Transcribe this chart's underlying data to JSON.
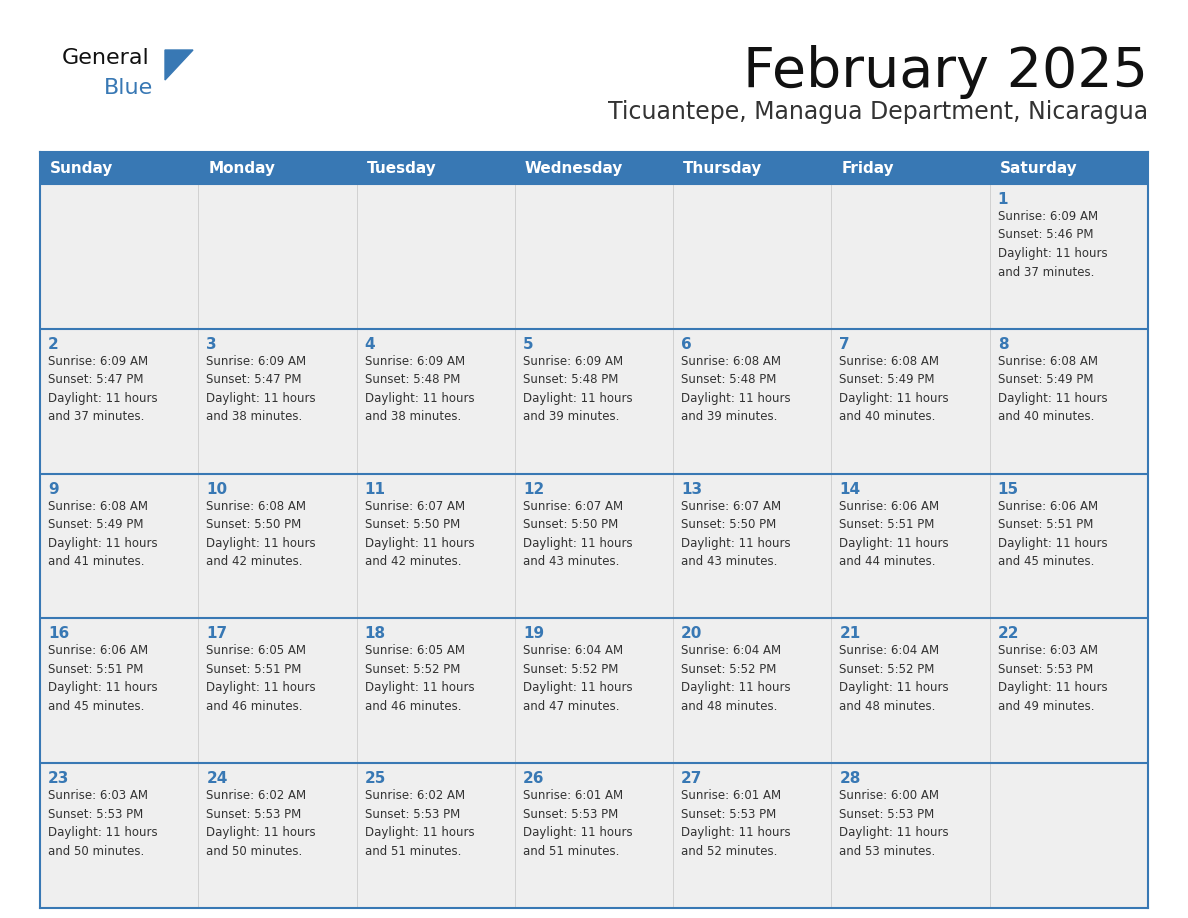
{
  "title": "February 2025",
  "subtitle": "Ticuantepe, Managua Department, Nicaragua",
  "header_color": "#3878b4",
  "header_text_color": "#ffffff",
  "cell_bg_color": "#efefef",
  "text_color": "#333333",
  "day_number_color": "#3878b4",
  "border_color": "#3878b4",
  "weekdays": [
    "Sunday",
    "Monday",
    "Tuesday",
    "Wednesday",
    "Thursday",
    "Friday",
    "Saturday"
  ],
  "weeks": [
    [
      {
        "day": null,
        "info": null
      },
      {
        "day": null,
        "info": null
      },
      {
        "day": null,
        "info": null
      },
      {
        "day": null,
        "info": null
      },
      {
        "day": null,
        "info": null
      },
      {
        "day": null,
        "info": null
      },
      {
        "day": 1,
        "info": "Sunrise: 6:09 AM\nSunset: 5:46 PM\nDaylight: 11 hours\nand 37 minutes."
      }
    ],
    [
      {
        "day": 2,
        "info": "Sunrise: 6:09 AM\nSunset: 5:47 PM\nDaylight: 11 hours\nand 37 minutes."
      },
      {
        "day": 3,
        "info": "Sunrise: 6:09 AM\nSunset: 5:47 PM\nDaylight: 11 hours\nand 38 minutes."
      },
      {
        "day": 4,
        "info": "Sunrise: 6:09 AM\nSunset: 5:48 PM\nDaylight: 11 hours\nand 38 minutes."
      },
      {
        "day": 5,
        "info": "Sunrise: 6:09 AM\nSunset: 5:48 PM\nDaylight: 11 hours\nand 39 minutes."
      },
      {
        "day": 6,
        "info": "Sunrise: 6:08 AM\nSunset: 5:48 PM\nDaylight: 11 hours\nand 39 minutes."
      },
      {
        "day": 7,
        "info": "Sunrise: 6:08 AM\nSunset: 5:49 PM\nDaylight: 11 hours\nand 40 minutes."
      },
      {
        "day": 8,
        "info": "Sunrise: 6:08 AM\nSunset: 5:49 PM\nDaylight: 11 hours\nand 40 minutes."
      }
    ],
    [
      {
        "day": 9,
        "info": "Sunrise: 6:08 AM\nSunset: 5:49 PM\nDaylight: 11 hours\nand 41 minutes."
      },
      {
        "day": 10,
        "info": "Sunrise: 6:08 AM\nSunset: 5:50 PM\nDaylight: 11 hours\nand 42 minutes."
      },
      {
        "day": 11,
        "info": "Sunrise: 6:07 AM\nSunset: 5:50 PM\nDaylight: 11 hours\nand 42 minutes."
      },
      {
        "day": 12,
        "info": "Sunrise: 6:07 AM\nSunset: 5:50 PM\nDaylight: 11 hours\nand 43 minutes."
      },
      {
        "day": 13,
        "info": "Sunrise: 6:07 AM\nSunset: 5:50 PM\nDaylight: 11 hours\nand 43 minutes."
      },
      {
        "day": 14,
        "info": "Sunrise: 6:06 AM\nSunset: 5:51 PM\nDaylight: 11 hours\nand 44 minutes."
      },
      {
        "day": 15,
        "info": "Sunrise: 6:06 AM\nSunset: 5:51 PM\nDaylight: 11 hours\nand 45 minutes."
      }
    ],
    [
      {
        "day": 16,
        "info": "Sunrise: 6:06 AM\nSunset: 5:51 PM\nDaylight: 11 hours\nand 45 minutes."
      },
      {
        "day": 17,
        "info": "Sunrise: 6:05 AM\nSunset: 5:51 PM\nDaylight: 11 hours\nand 46 minutes."
      },
      {
        "day": 18,
        "info": "Sunrise: 6:05 AM\nSunset: 5:52 PM\nDaylight: 11 hours\nand 46 minutes."
      },
      {
        "day": 19,
        "info": "Sunrise: 6:04 AM\nSunset: 5:52 PM\nDaylight: 11 hours\nand 47 minutes."
      },
      {
        "day": 20,
        "info": "Sunrise: 6:04 AM\nSunset: 5:52 PM\nDaylight: 11 hours\nand 48 minutes."
      },
      {
        "day": 21,
        "info": "Sunrise: 6:04 AM\nSunset: 5:52 PM\nDaylight: 11 hours\nand 48 minutes."
      },
      {
        "day": 22,
        "info": "Sunrise: 6:03 AM\nSunset: 5:53 PM\nDaylight: 11 hours\nand 49 minutes."
      }
    ],
    [
      {
        "day": 23,
        "info": "Sunrise: 6:03 AM\nSunset: 5:53 PM\nDaylight: 11 hours\nand 50 minutes."
      },
      {
        "day": 24,
        "info": "Sunrise: 6:02 AM\nSunset: 5:53 PM\nDaylight: 11 hours\nand 50 minutes."
      },
      {
        "day": 25,
        "info": "Sunrise: 6:02 AM\nSunset: 5:53 PM\nDaylight: 11 hours\nand 51 minutes."
      },
      {
        "day": 26,
        "info": "Sunrise: 6:01 AM\nSunset: 5:53 PM\nDaylight: 11 hours\nand 51 minutes."
      },
      {
        "day": 27,
        "info": "Sunrise: 6:01 AM\nSunset: 5:53 PM\nDaylight: 11 hours\nand 52 minutes."
      },
      {
        "day": 28,
        "info": "Sunrise: 6:00 AM\nSunset: 5:53 PM\nDaylight: 11 hours\nand 53 minutes."
      },
      {
        "day": null,
        "info": null
      }
    ]
  ]
}
